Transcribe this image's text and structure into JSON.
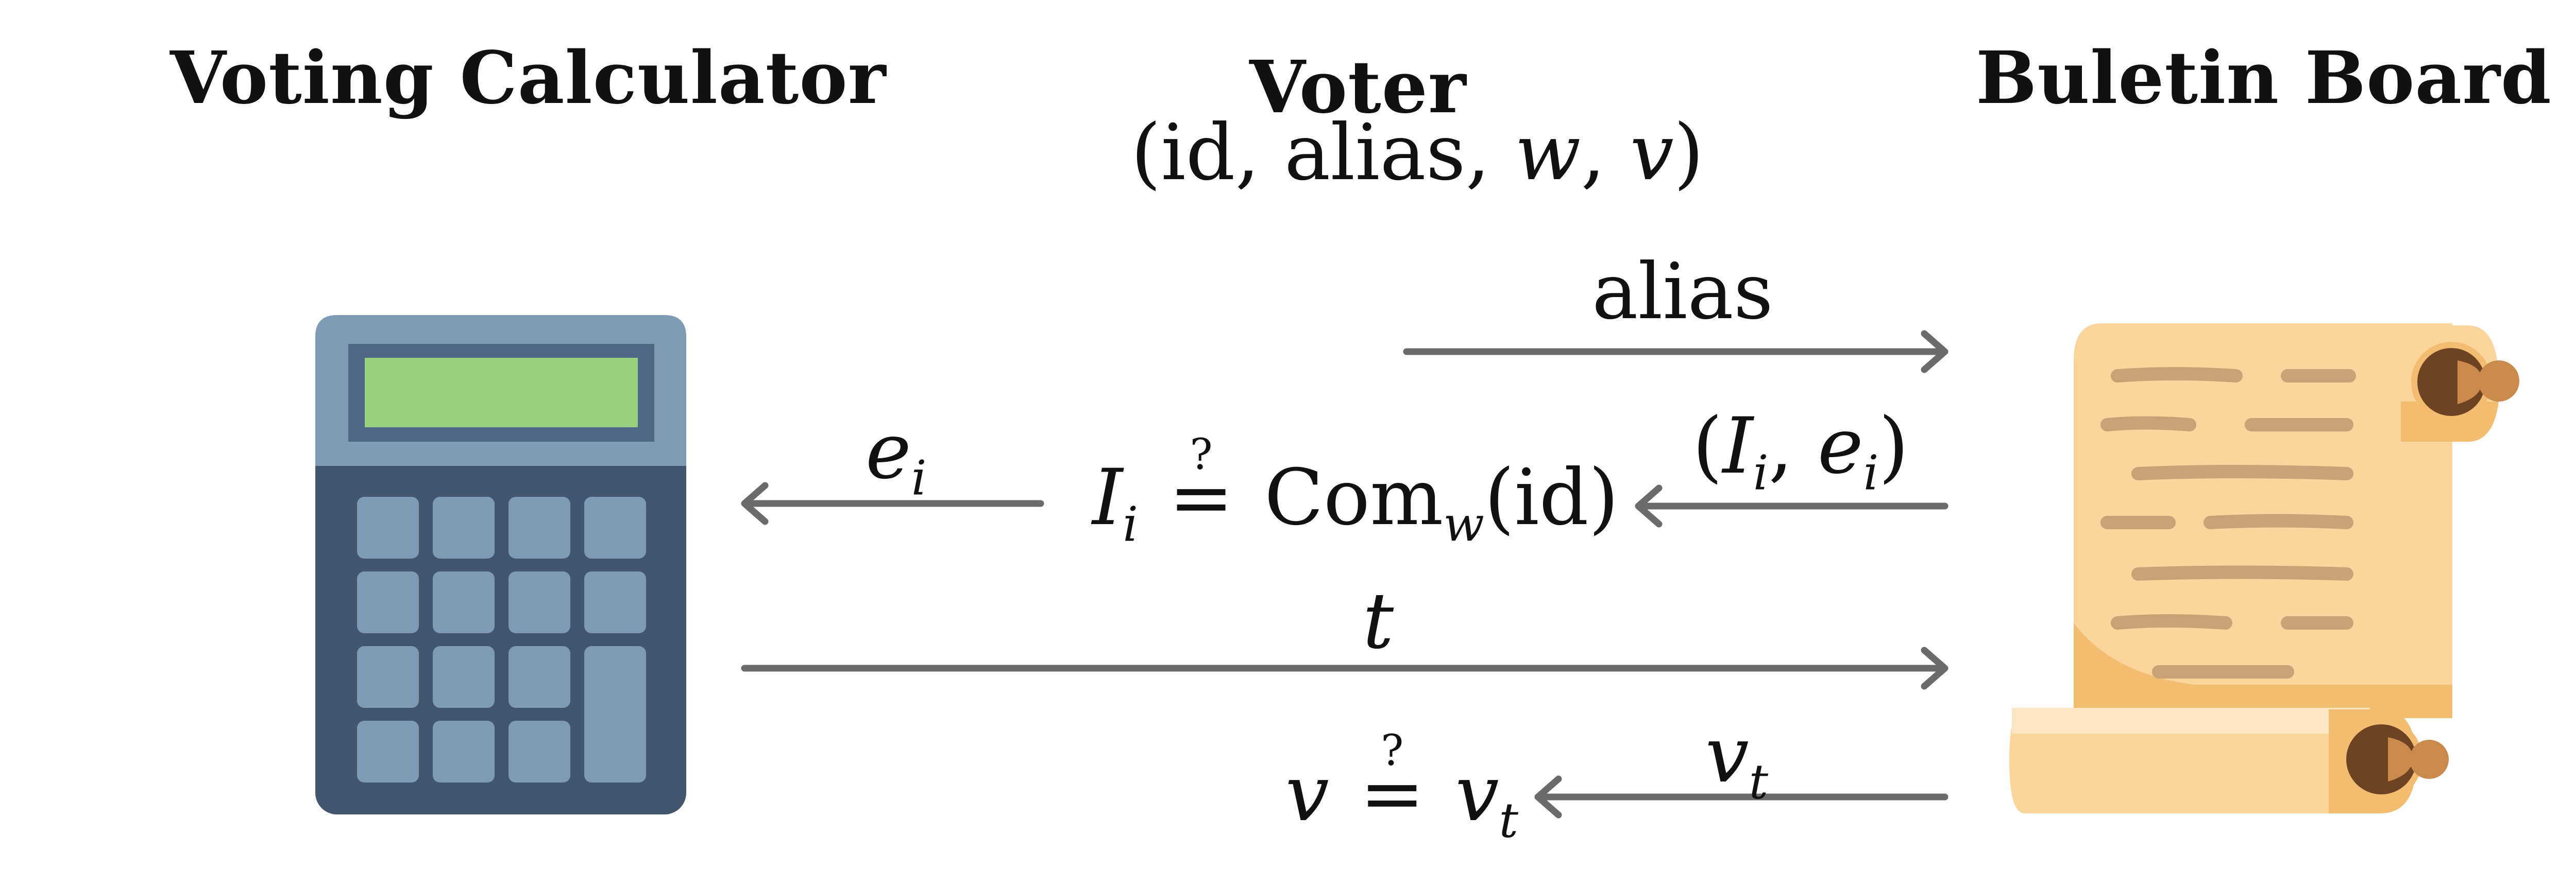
{
  "participants": {
    "calculator": "Voting Calculator",
    "voter": "Voter",
    "board": "Buletin Board"
  },
  "voter_state": {
    "open": "(",
    "id": "id",
    "sep1": ", ",
    "alias": "alias",
    "sep2": ", ",
    "w": "w",
    "sep3": ", ",
    "v": "v",
    "close": ")"
  },
  "messages": {
    "alias": {
      "label": "alias",
      "direction": "voter-to-board"
    },
    "commit": {
      "open": "(",
      "I": "I",
      "i1": "i",
      "sep": ", ",
      "e": "e",
      "i2": "i",
      "close": ")",
      "direction": "board-to-voter"
    },
    "challenge": {
      "e": "e",
      "sub": "i",
      "direction": "voter-to-calculator"
    },
    "token": {
      "label": "t",
      "direction": "calculator-to-board"
    },
    "vote": {
      "v": "v",
      "sub": "t",
      "direction": "board-to-voter"
    }
  },
  "checks": {
    "commitment": {
      "lhs": "I",
      "lhs_sub": "i",
      "q": "?",
      "eq": "=",
      "func": "Com",
      "func_sub": "w",
      "arg": "(id)"
    },
    "vote": {
      "lhs": "v",
      "q": "?",
      "eq": "=",
      "rhs": "v",
      "rhs_sub": "t"
    }
  },
  "colors": {
    "arrow": "#6b6b6b",
    "calc_top": "#7f9ab5",
    "calc_body": "#43566d",
    "calc_screen_frame": "#4f6784",
    "calc_screen": "#97d07f",
    "calc_key": "#7f9ab5",
    "scroll_paper": "#fbd59c",
    "scroll_shadow": "#f2bd70",
    "scroll_line": "#c9a377",
    "scroll_knob": "#8b5a32",
    "scroll_knob_light": "#c98a4b"
  },
  "icons": {
    "calculator": "calculator-icon",
    "board": "scroll-icon"
  }
}
